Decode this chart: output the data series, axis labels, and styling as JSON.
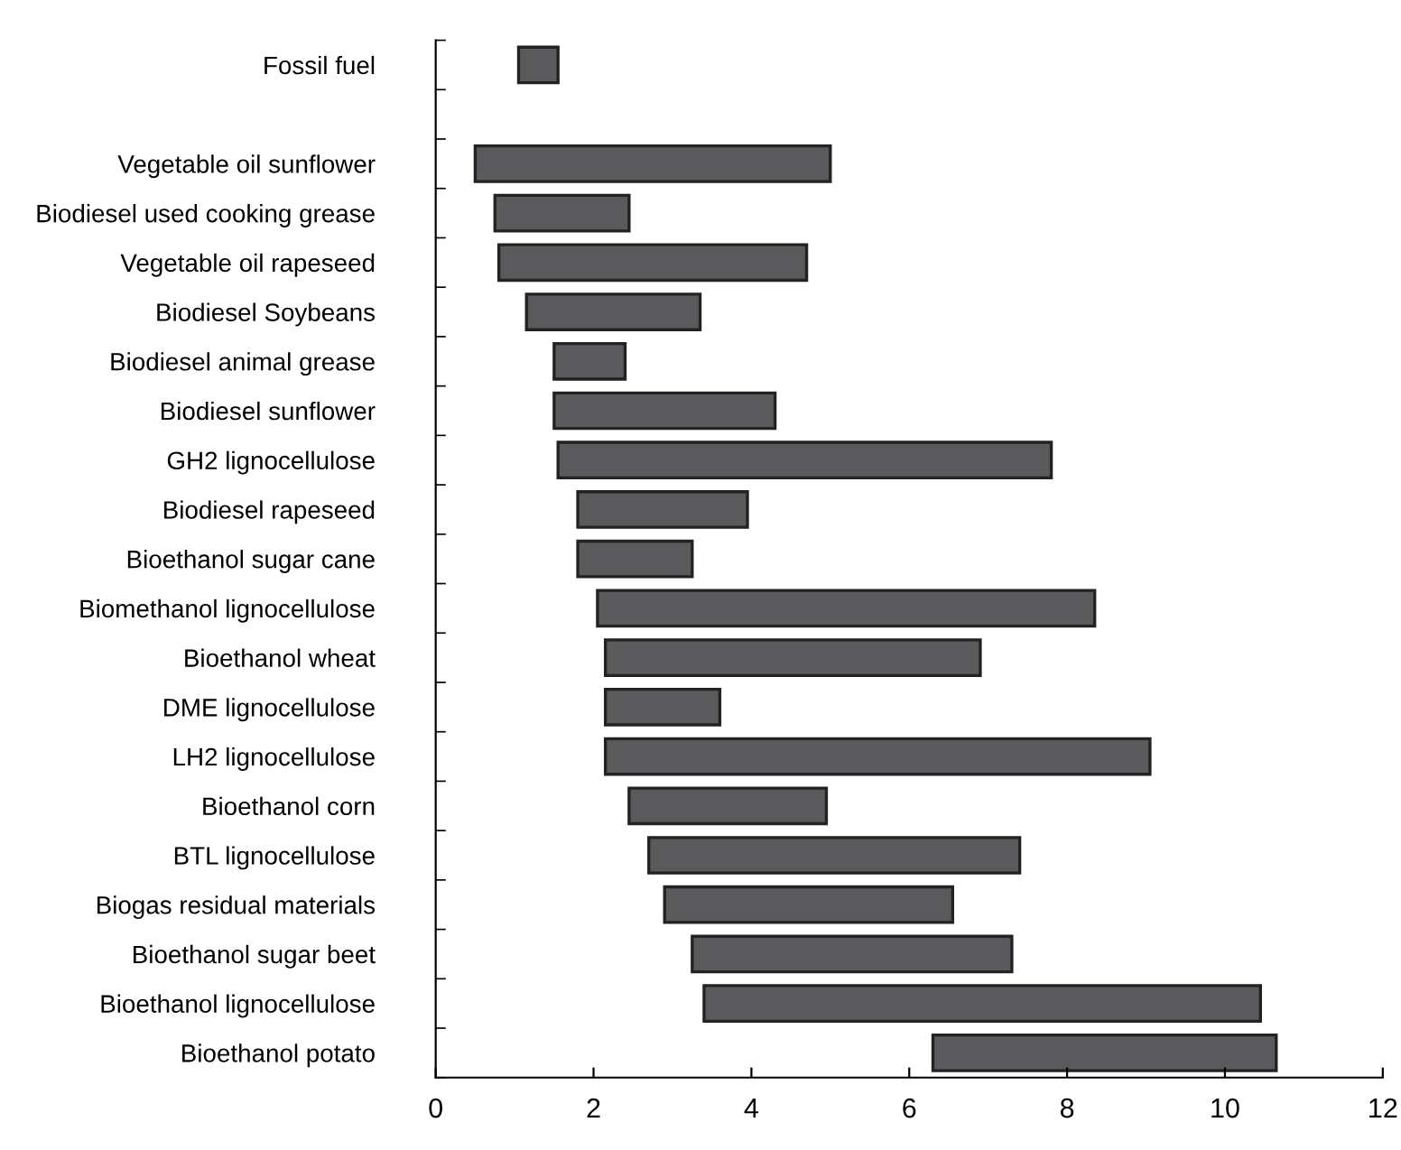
{
  "chart_data": {
    "type": "bar",
    "orientation": "horizontal",
    "categories": [
      "Fossil fuel",
      null,
      "Vegetable oil sunflower",
      "Biodiesel used cooking grease",
      "Vegetable oil rapeseed",
      "Biodiesel Soybeans",
      "Biodiesel animal grease",
      "Biodiesel sunflower",
      "GH2 lignocellulose",
      "Biodiesel rapeseed",
      "Bioethanol sugar cane",
      "Biomethanol lignocellulose",
      "Bioethanol wheat",
      "DME lignocellulose",
      "LH2 lignocellulose",
      "Bioethanol corn",
      "BTL lignocellulose",
      "Biogas residual materials",
      "Bioethanol sugar beet",
      "Bioethanol lignocellulose",
      "Bioethanol potato"
    ],
    "base": [
      1.05,
      null,
      0.5,
      0.75,
      0.8,
      1.15,
      1.5,
      1.5,
      1.55,
      1.8,
      1.8,
      2.05,
      2.15,
      2.15,
      2.15,
      2.45,
      2.7,
      2.9,
      3.25,
      3.4,
      6.3
    ],
    "values": [
      0.5,
      null,
      4.5,
      1.7,
      3.9,
      2.2,
      0.9,
      2.8,
      6.25,
      2.15,
      1.45,
      6.3,
      4.75,
      1.45,
      6.9,
      2.5,
      4.7,
      3.65,
      4.05,
      7.05,
      4.35
    ],
    "color": "#5a5a5c",
    "xlim": [
      0,
      12
    ],
    "xticks": [
      0,
      2,
      4,
      6,
      8,
      10,
      12
    ],
    "grid": false,
    "legend": false
  }
}
